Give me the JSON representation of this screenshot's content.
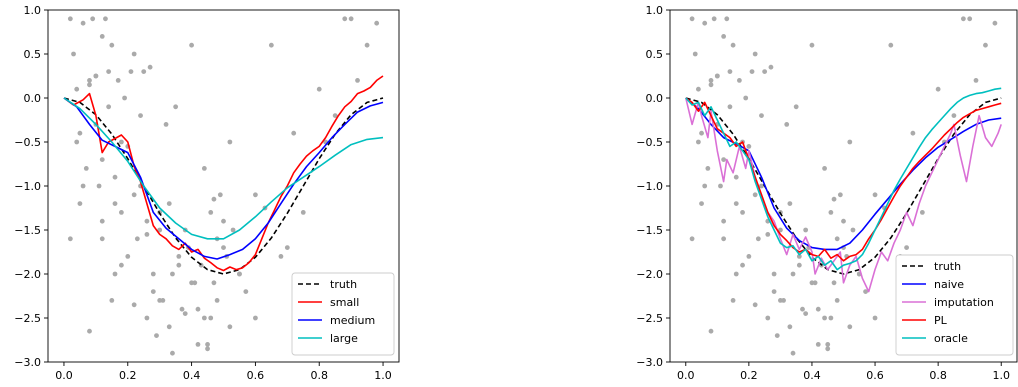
{
  "chart_data": [
    {
      "type": "line",
      "panel": "left",
      "xlim": [
        -0.05,
        1.05
      ],
      "ylim": [
        -3.0,
        1.0
      ],
      "xticks": [
        "0.0",
        "0.2",
        "0.4",
        "0.6",
        "0.8",
        "1.0"
      ],
      "xtick_values": [
        0.0,
        0.2,
        0.4,
        0.6,
        0.8,
        1.0
      ],
      "yticks": [
        "1.0",
        "0.5",
        "0.0",
        "−0.5",
        "−1.0",
        "−1.5",
        "−2.0",
        "−2.5",
        "−3.0"
      ],
      "ytick_values": [
        1.0,
        0.5,
        0.0,
        -0.5,
        -1.0,
        -1.5,
        -2.0,
        -2.5,
        -3.0
      ],
      "legend_position": "lower-right",
      "series": [
        {
          "name": "truth",
          "color": "#000000",
          "dash": true,
          "x": [
            0.0,
            0.05,
            0.1,
            0.15,
            0.2,
            0.25,
            0.3,
            0.35,
            0.4,
            0.45,
            0.5,
            0.55,
            0.6,
            0.65,
            0.7,
            0.75,
            0.8,
            0.85,
            0.9,
            0.95,
            1.0
          ],
          "y": [
            0.0,
            -0.05,
            -0.19,
            -0.41,
            -0.69,
            -1.0,
            -1.31,
            -1.59,
            -1.81,
            -1.95,
            -2.0,
            -1.95,
            -1.81,
            -1.59,
            -1.31,
            -1.0,
            -0.69,
            -0.41,
            -0.19,
            -0.05,
            0.0
          ]
        },
        {
          "name": "small",
          "color": "#ff0000",
          "dash": false,
          "x": [
            0.0,
            0.03,
            0.06,
            0.08,
            0.1,
            0.12,
            0.14,
            0.16,
            0.18,
            0.2,
            0.22,
            0.24,
            0.26,
            0.28,
            0.3,
            0.32,
            0.34,
            0.36,
            0.38,
            0.4,
            0.42,
            0.44,
            0.46,
            0.48,
            0.5,
            0.52,
            0.54,
            0.56,
            0.58,
            0.6,
            0.62,
            0.64,
            0.66,
            0.68,
            0.7,
            0.72,
            0.74,
            0.76,
            0.78,
            0.8,
            0.82,
            0.84,
            0.86,
            0.88,
            0.9,
            0.92,
            0.94,
            0.96,
            0.98,
            1.0
          ],
          "y": [
            0.0,
            -0.08,
            -0.02,
            0.05,
            -0.2,
            -0.62,
            -0.5,
            -0.46,
            -0.42,
            -0.5,
            -0.78,
            -0.95,
            -1.2,
            -1.45,
            -1.55,
            -1.6,
            -1.68,
            -1.72,
            -1.65,
            -1.75,
            -1.72,
            -1.82,
            -1.87,
            -1.93,
            -1.96,
            -1.92,
            -1.95,
            -1.93,
            -1.87,
            -1.78,
            -1.6,
            -1.42,
            -1.27,
            -1.12,
            -1.0,
            -0.85,
            -0.75,
            -0.66,
            -0.6,
            -0.55,
            -0.45,
            -0.32,
            -0.2,
            -0.1,
            -0.04,
            0.05,
            0.08,
            0.12,
            0.2,
            0.25
          ]
        },
        {
          "name": "medium",
          "color": "#0000ff",
          "dash": false,
          "x": [
            0.0,
            0.04,
            0.08,
            0.12,
            0.16,
            0.2,
            0.24,
            0.28,
            0.32,
            0.36,
            0.4,
            0.44,
            0.48,
            0.52,
            0.56,
            0.6,
            0.64,
            0.68,
            0.72,
            0.76,
            0.8,
            0.84,
            0.88,
            0.92,
            0.96,
            1.0
          ],
          "y": [
            0.0,
            -0.1,
            -0.3,
            -0.48,
            -0.55,
            -0.62,
            -0.9,
            -1.3,
            -1.48,
            -1.6,
            -1.72,
            -1.8,
            -1.83,
            -1.78,
            -1.72,
            -1.6,
            -1.42,
            -1.2,
            -0.98,
            -0.78,
            -0.62,
            -0.45,
            -0.3,
            -0.16,
            -0.09,
            -0.05
          ]
        },
        {
          "name": "large",
          "color": "#00bfbf",
          "dash": false,
          "x": [
            0.0,
            0.05,
            0.1,
            0.15,
            0.2,
            0.25,
            0.3,
            0.35,
            0.4,
            0.45,
            0.5,
            0.55,
            0.6,
            0.65,
            0.7,
            0.75,
            0.8,
            0.85,
            0.9,
            0.95,
            1.0
          ],
          "y": [
            0.0,
            -0.12,
            -0.3,
            -0.5,
            -0.72,
            -1.0,
            -1.25,
            -1.42,
            -1.55,
            -1.6,
            -1.6,
            -1.5,
            -1.35,
            -1.18,
            -1.02,
            -0.9,
            -0.78,
            -0.65,
            -0.53,
            -0.47,
            -0.45
          ]
        }
      ]
    },
    {
      "type": "line",
      "panel": "right",
      "xlim": [
        -0.05,
        1.05
      ],
      "ylim": [
        -3.0,
        1.0
      ],
      "xticks": [
        "0.0",
        "0.2",
        "0.4",
        "0.6",
        "0.8",
        "1.0"
      ],
      "xtick_values": [
        0.0,
        0.2,
        0.4,
        0.6,
        0.8,
        1.0
      ],
      "yticks": [
        "1.0",
        "0.5",
        "0.0",
        "−0.5",
        "−1.0",
        "−1.5",
        "−2.0",
        "−2.5",
        "−3.0"
      ],
      "ytick_values": [
        1.0,
        0.5,
        0.0,
        -0.5,
        -1.0,
        -1.5,
        -2.0,
        -2.5,
        -3.0
      ],
      "legend_position": "lower-right",
      "series": [
        {
          "name": "truth",
          "color": "#000000",
          "dash": true,
          "x": [
            0.0,
            0.05,
            0.1,
            0.15,
            0.2,
            0.25,
            0.3,
            0.35,
            0.4,
            0.45,
            0.5,
            0.55,
            0.6,
            0.65,
            0.7,
            0.75,
            0.8,
            0.85,
            0.9,
            0.95,
            1.0
          ],
          "y": [
            0.0,
            -0.05,
            -0.19,
            -0.41,
            -0.69,
            -1.0,
            -1.31,
            -1.59,
            -1.81,
            -1.95,
            -2.0,
            -1.95,
            -1.81,
            -1.59,
            -1.31,
            -1.0,
            -0.69,
            -0.41,
            -0.19,
            -0.05,
            0.0
          ]
        },
        {
          "name": "naive",
          "color": "#0000ff",
          "dash": false,
          "x": [
            0.0,
            0.04,
            0.08,
            0.12,
            0.16,
            0.2,
            0.24,
            0.28,
            0.32,
            0.36,
            0.4,
            0.44,
            0.48,
            0.52,
            0.56,
            0.6,
            0.64,
            0.68,
            0.72,
            0.76,
            0.8,
            0.84,
            0.88,
            0.92,
            0.96,
            1.0
          ],
          "y": [
            0.0,
            -0.12,
            -0.3,
            -0.45,
            -0.52,
            -0.6,
            -0.9,
            -1.25,
            -1.48,
            -1.62,
            -1.7,
            -1.72,
            -1.72,
            -1.65,
            -1.5,
            -1.32,
            -1.15,
            -0.98,
            -0.82,
            -0.68,
            -0.56,
            -0.47,
            -0.38,
            -0.3,
            -0.25,
            -0.23
          ]
        },
        {
          "name": "imputation",
          "color": "#da70d6",
          "dash": false,
          "x": [
            0.0,
            0.02,
            0.04,
            0.05,
            0.07,
            0.08,
            0.1,
            0.12,
            0.13,
            0.15,
            0.17,
            0.19,
            0.2,
            0.22,
            0.24,
            0.26,
            0.28,
            0.3,
            0.32,
            0.34,
            0.36,
            0.38,
            0.4,
            0.41,
            0.43,
            0.45,
            0.47,
            0.49,
            0.5,
            0.52,
            0.54,
            0.56,
            0.58,
            0.6,
            0.62,
            0.64,
            0.66,
            0.68,
            0.7,
            0.72,
            0.74,
            0.76,
            0.78,
            0.8,
            0.82,
            0.84,
            0.85,
            0.87,
            0.89,
            0.91,
            0.93,
            0.95,
            0.97,
            0.99,
            1.0
          ],
          "y": [
            0.0,
            -0.3,
            -0.05,
            -0.2,
            -0.45,
            -0.15,
            -0.6,
            -0.95,
            -0.7,
            -0.85,
            -0.55,
            -0.8,
            -0.6,
            -0.9,
            -1.1,
            -1.3,
            -1.4,
            -1.6,
            -1.78,
            -1.55,
            -1.72,
            -1.58,
            -1.75,
            -2.0,
            -1.82,
            -1.95,
            -1.85,
            -1.75,
            -2.1,
            -1.9,
            -1.8,
            -2.05,
            -2.2,
            -1.95,
            -1.75,
            -1.85,
            -1.65,
            -1.5,
            -1.3,
            -1.45,
            -1.2,
            -1.0,
            -0.85,
            -0.7,
            -0.55,
            -0.4,
            -0.3,
            -0.65,
            -0.95,
            -0.55,
            -0.2,
            -0.45,
            -0.55,
            -0.4,
            -0.3
          ]
        },
        {
          "name": "PL",
          "color": "#ff0000",
          "dash": false,
          "x": [
            0.0,
            0.02,
            0.04,
            0.06,
            0.08,
            0.1,
            0.12,
            0.14,
            0.16,
            0.18,
            0.2,
            0.22,
            0.24,
            0.26,
            0.28,
            0.3,
            0.32,
            0.34,
            0.36,
            0.38,
            0.4,
            0.42,
            0.44,
            0.46,
            0.48,
            0.5,
            0.52,
            0.54,
            0.56,
            0.58,
            0.6,
            0.62,
            0.64,
            0.66,
            0.68,
            0.7,
            0.72,
            0.74,
            0.76,
            0.78,
            0.8,
            0.82,
            0.84,
            0.86,
            0.88,
            0.9,
            0.92,
            0.94,
            0.96,
            0.98,
            1.0
          ],
          "y": [
            0.0,
            -0.05,
            -0.15,
            -0.05,
            -0.2,
            -0.35,
            -0.4,
            -0.45,
            -0.55,
            -0.5,
            -0.7,
            -0.9,
            -1.1,
            -1.3,
            -1.45,
            -1.55,
            -1.62,
            -1.7,
            -1.75,
            -1.72,
            -1.78,
            -1.8,
            -1.72,
            -1.82,
            -1.78,
            -1.85,
            -1.8,
            -1.78,
            -1.72,
            -1.6,
            -1.5,
            -1.38,
            -1.25,
            -1.12,
            -1.0,
            -0.9,
            -0.8,
            -0.72,
            -0.65,
            -0.58,
            -0.5,
            -0.42,
            -0.35,
            -0.28,
            -0.22,
            -0.18,
            -0.14,
            -0.12,
            -0.1,
            -0.08,
            -0.06
          ]
        },
        {
          "name": "oracle",
          "color": "#00bfbf",
          "dash": false,
          "x": [
            0.0,
            0.02,
            0.04,
            0.06,
            0.08,
            0.1,
            0.12,
            0.14,
            0.16,
            0.18,
            0.2,
            0.22,
            0.24,
            0.26,
            0.28,
            0.3,
            0.32,
            0.34,
            0.36,
            0.38,
            0.4,
            0.42,
            0.44,
            0.46,
            0.48,
            0.5,
            0.52,
            0.54,
            0.56,
            0.58,
            0.6,
            0.62,
            0.64,
            0.66,
            0.68,
            0.7,
            0.72,
            0.74,
            0.76,
            0.78,
            0.8,
            0.82,
            0.84,
            0.86,
            0.88,
            0.9,
            0.92,
            0.94,
            0.96,
            0.98,
            1.0
          ],
          "y": [
            0.0,
            -0.08,
            -0.05,
            -0.2,
            -0.1,
            -0.25,
            -0.4,
            -0.55,
            -0.5,
            -0.6,
            -0.7,
            -0.95,
            -1.15,
            -1.35,
            -1.5,
            -1.65,
            -1.7,
            -1.68,
            -1.78,
            -1.72,
            -1.85,
            -1.8,
            -1.9,
            -1.85,
            -1.95,
            -1.9,
            -1.88,
            -1.85,
            -1.78,
            -1.65,
            -1.5,
            -1.35,
            -1.2,
            -1.05,
            -0.92,
            -0.8,
            -0.68,
            -0.56,
            -0.45,
            -0.36,
            -0.28,
            -0.2,
            -0.12,
            -0.05,
            0.0,
            0.03,
            0.05,
            0.06,
            0.08,
            0.1,
            0.11
          ]
        }
      ]
    }
  ],
  "scatter_points": {
    "color": "#aaaaaa",
    "x": [
      0.02,
      0.03,
      0.04,
      0.05,
      0.05,
      0.06,
      0.07,
      0.08,
      0.09,
      0.1,
      0.1,
      0.11,
      0.12,
      0.12,
      0.13,
      0.14,
      0.15,
      0.15,
      0.16,
      0.17,
      0.18,
      0.18,
      0.19,
      0.2,
      0.21,
      0.22,
      0.22,
      0.23,
      0.24,
      0.25,
      0.26,
      0.26,
      0.27,
      0.28,
      0.29,
      0.3,
      0.31,
      0.32,
      0.33,
      0.34,
      0.35,
      0.36,
      0.37,
      0.38,
      0.39,
      0.4,
      0.41,
      0.42,
      0.43,
      0.44,
      0.45,
      0.46,
      0.47,
      0.48,
      0.49,
      0.5,
      0.51,
      0.52,
      0.53,
      0.55,
      0.57,
      0.6,
      0.65,
      0.7,
      0.72,
      0.75,
      0.8,
      0.82,
      0.85,
      0.88,
      0.9,
      0.92,
      0.95,
      0.98,
      0.02,
      0.04,
      0.06,
      0.08,
      0.1,
      0.12,
      0.14,
      0.16,
      0.18,
      0.2,
      0.24,
      0.28,
      0.3,
      0.33,
      0.36,
      0.4,
      0.42,
      0.44,
      0.46,
      0.48,
      0.5,
      0.08,
      0.12,
      0.16,
      0.22,
      0.26,
      0.3,
      0.34,
      0.38,
      0.45,
      0.47,
      0.52,
      0.55,
      0.6,
      0.63,
      0.68
    ],
    "y": [
      0.9,
      0.5,
      0.1,
      -0.4,
      -1.2,
      0.85,
      -0.8,
      0.2,
      0.9,
      -0.3,
      0.25,
      -1.0,
      0.7,
      -1.4,
      0.9,
      -0.1,
      0.6,
      -2.3,
      -1.2,
      0.2,
      -0.5,
      -1.9,
      0.0,
      -1.8,
      0.3,
      0.5,
      -1.1,
      -1.6,
      -0.2,
      0.3,
      -2.5,
      -1.4,
      0.35,
      -2.0,
      -2.7,
      -1.3,
      -2.3,
      -0.3,
      -1.2,
      -2.9,
      -0.1,
      -1.8,
      -2.4,
      -1.5,
      -1.7,
      0.6,
      -2.1,
      -2.4,
      -1.9,
      -2.5,
      -2.8,
      -1.3,
      -2.1,
      -1.6,
      -1.1,
      -1.4,
      -1.8,
      -2.6,
      -1.5,
      -2.0,
      -2.2,
      -1.1,
      0.6,
      -1.7,
      -0.4,
      -1.3,
      0.1,
      -0.5,
      -0.2,
      0.9,
      0.9,
      0.2,
      0.6,
      0.85,
      -1.6,
      -0.5,
      -1.0,
      0.15,
      0.25,
      -0.7,
      0.3,
      -0.9,
      -1.3,
      -0.55,
      -1.0,
      -2.2,
      -1.5,
      -2.6,
      -1.9,
      -2.1,
      -2.8,
      -0.8,
      -2.5,
      -2.3,
      -1.7,
      -2.65,
      -1.6,
      -2.0,
      -2.35,
      -1.55,
      -2.3,
      -2.0,
      -2.45,
      -2.85,
      -1.15,
      -0.5,
      -2.0,
      -2.5,
      -1.25,
      -1.8
    ]
  }
}
